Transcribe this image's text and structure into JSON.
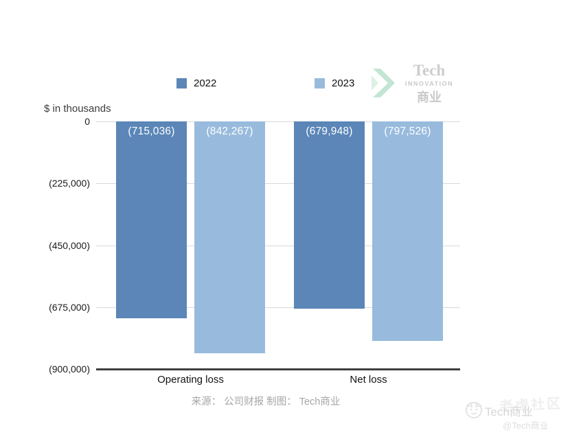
{
  "chart_data": {
    "type": "bar",
    "categories": [
      "Operating loss",
      "Net loss"
    ],
    "series": [
      {
        "name": "2022",
        "color": "#5b86b7",
        "values": [
          -715036,
          -679948
        ],
        "labels": [
          "(715,036)",
          "(679,948)"
        ]
      },
      {
        "name": "2023",
        "color": "#98bbdd",
        "values": [
          -842267,
          -797526
        ],
        "labels": [
          "(842,267)",
          "(797,526)"
        ]
      }
    ],
    "title": "",
    "xlabel": "",
    "ylabel": "$ in thousands",
    "ylim": [
      -900000,
      0
    ],
    "yticks": [
      {
        "label": "0",
        "value": 0
      },
      {
        "label": "(225,000)",
        "value": -225000
      },
      {
        "label": "(450,000)",
        "value": -450000
      },
      {
        "label": "(675,000)",
        "value": -675000
      },
      {
        "label": "(900,000)",
        "value": -900000
      }
    ],
    "grid": true,
    "legend_position": "top"
  },
  "brand_logo": {
    "line1": "Tech",
    "line2": "INNOVATION",
    "line3": "商业"
  },
  "source": "来源： 公司财报 制图： Tech商业",
  "watermark": {
    "ghost": "老虎社区",
    "title": "Tech商业",
    "handle": "@Tech商业"
  },
  "colors": {
    "bar_2022": "#5b86b7",
    "bar_2023": "#98bbdd",
    "gridline": "#d9d9d9",
    "axis_line": "#3e3e3e",
    "brand_green": "#b9e2cc"
  }
}
